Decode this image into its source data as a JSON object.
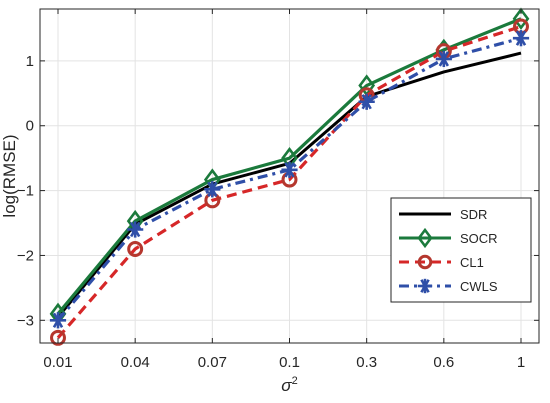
{
  "chart_data": {
    "type": "line",
    "categories": [
      "0.01",
      "0.04",
      "0.07",
      "0.1",
      "0.3",
      "0.6",
      "1"
    ],
    "xlabel_main": "σ",
    "xlabel_sup": "2",
    "ylabel": "log(RMSE)",
    "ylim": [
      -3.35,
      1.8
    ],
    "yticks": [
      -3,
      -2,
      -1,
      0,
      1
    ],
    "ytick_labels": [
      "−3",
      "−2",
      "−1",
      "0",
      "1"
    ],
    "grid": true,
    "legend_position": "bottom-right",
    "series": [
      {
        "name": "SDR",
        "values": [
          -2.95,
          -1.52,
          -0.9,
          -0.58,
          0.45,
          0.83,
          1.12
        ],
        "color": "#000000",
        "dash": "solid",
        "marker": "none"
      },
      {
        "name": "SOCR",
        "values": [
          -2.9,
          -1.47,
          -0.83,
          -0.5,
          0.62,
          1.17,
          1.65
        ],
        "color": "#1b7a3c",
        "dash": "solid",
        "marker": "diamond"
      },
      {
        "name": "CL1",
        "values": [
          -3.27,
          -1.9,
          -1.15,
          -0.83,
          0.47,
          1.15,
          1.53
        ],
        "color": "#d62728",
        "dash": "dashed",
        "marker": "circle",
        "marker_color": "#b5372e"
      },
      {
        "name": "CWLS",
        "values": [
          -3.0,
          -1.6,
          -0.98,
          -0.68,
          0.37,
          1.03,
          1.35
        ],
        "color": "#2f4fa8",
        "dash": "dashdot",
        "marker": "asterisk"
      }
    ]
  }
}
